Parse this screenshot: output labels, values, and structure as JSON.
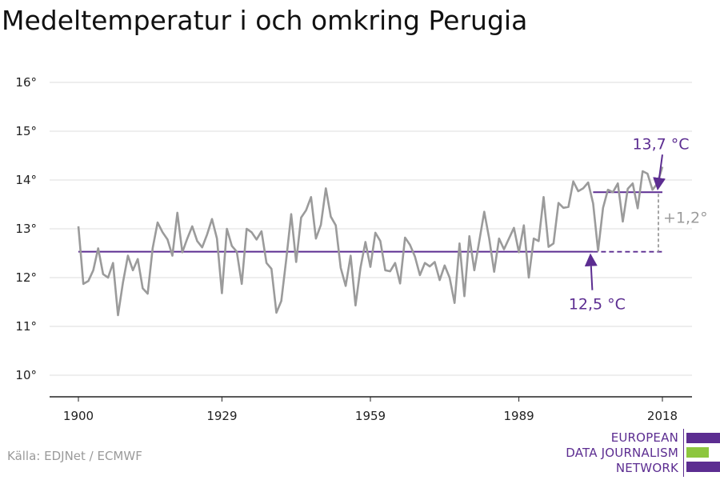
{
  "chart_data": {
    "type": "line",
    "title": "Medeltemperatur i och omkring Perugia",
    "xlim": [
      1900,
      2018
    ],
    "ylim": [
      10,
      16
    ],
    "x_ticks": [
      {
        "value": 1900,
        "label": "1900"
      },
      {
        "value": 1929,
        "label": "1929"
      },
      {
        "value": 1959,
        "label": "1959"
      },
      {
        "value": 1989,
        "label": "1989"
      },
      {
        "value": 2018,
        "label": "2018"
      }
    ],
    "y_ticks": [
      {
        "value": 10,
        "label": "10°"
      },
      {
        "value": 11,
        "label": "11°"
      },
      {
        "value": 12,
        "label": "12°"
      },
      {
        "value": 13,
        "label": "13°"
      },
      {
        "value": 14,
        "label": "14°"
      },
      {
        "value": 15,
        "label": "15°"
      },
      {
        "value": 16,
        "label": "16°"
      }
    ],
    "grid": true,
    "series": [
      {
        "color": "#9b9b9b",
        "x": [
          1900,
          1901,
          1902,
          1903,
          1904,
          1905,
          1906,
          1907,
          1908,
          1909,
          1910,
          1911,
          1912,
          1913,
          1914,
          1915,
          1916,
          1917,
          1918,
          1919,
          1920,
          1921,
          1922,
          1923,
          1924,
          1925,
          1926,
          1927,
          1928,
          1929,
          1930,
          1931,
          1932,
          1933,
          1934,
          1935,
          1936,
          1937,
          1938,
          1939,
          1940,
          1941,
          1942,
          1943,
          1944,
          1945,
          1946,
          1947,
          1948,
          1949,
          1950,
          1951,
          1952,
          1953,
          1954,
          1955,
          1956,
          1957,
          1958,
          1959,
          1960,
          1961,
          1962,
          1963,
          1964,
          1965,
          1966,
          1967,
          1968,
          1969,
          1970,
          1971,
          1972,
          1973,
          1974,
          1975,
          1976,
          1977,
          1978,
          1979,
          1980,
          1981,
          1982,
          1983,
          1984,
          1985,
          1986,
          1987,
          1988,
          1989,
          1990,
          1991,
          1992,
          1993,
          1994,
          1995,
          1996,
          1997,
          1998,
          1999,
          2000,
          2001,
          2002,
          2003,
          2004,
          2005,
          2006,
          2007,
          2008,
          2009,
          2010,
          2011,
          2012,
          2013,
          2014,
          2015,
          2016,
          2017,
          2018
        ],
        "values": [
          13.05,
          11.87,
          11.93,
          12.15,
          12.6,
          12.07,
          12.0,
          12.3,
          11.23,
          11.9,
          12.45,
          12.15,
          12.38,
          11.78,
          11.67,
          12.6,
          13.13,
          12.93,
          12.78,
          12.45,
          13.33,
          12.52,
          12.8,
          13.05,
          12.75,
          12.62,
          12.88,
          13.2,
          12.8,
          11.68,
          13.0,
          12.65,
          12.53,
          11.87,
          13.0,
          12.93,
          12.78,
          12.95,
          12.3,
          12.18,
          11.28,
          11.52,
          12.37,
          13.3,
          12.32,
          13.23,
          13.38,
          13.65,
          12.8,
          13.08,
          13.83,
          13.25,
          13.07,
          12.2,
          11.83,
          12.45,
          11.43,
          12.2,
          12.73,
          12.22,
          12.92,
          12.75,
          12.15,
          12.13,
          12.3,
          11.88,
          12.82,
          12.67,
          12.43,
          12.05,
          12.3,
          12.23,
          12.32,
          11.95,
          12.25,
          12.0,
          11.48,
          12.7,
          11.62,
          12.85,
          12.15,
          12.75,
          13.35,
          12.8,
          12.12,
          12.8,
          12.58,
          12.8,
          13.02,
          12.52,
          13.07,
          12.0,
          12.8,
          12.75,
          13.65,
          12.63,
          12.7,
          13.53,
          13.43,
          13.45,
          13.97,
          13.77,
          13.83,
          13.95,
          13.52,
          12.55,
          13.43,
          13.8,
          13.75,
          13.93,
          13.15,
          13.82,
          13.93,
          13.42,
          14.18,
          14.13,
          13.8,
          13.93,
          14.27
        ]
      }
    ],
    "reference_lines": [
      {
        "label": "12,5 °C",
        "value": 12.53,
        "x_start": 1900,
        "x_end": 2004,
        "dashed_to": 2018,
        "color": "#5c2d91"
      },
      {
        "label": "13,7 °C",
        "value": 13.75,
        "x_start": 2004,
        "x_end": 2018,
        "color": "#5c2d91"
      }
    ],
    "difference": {
      "label": "+1,2°",
      "x": 2018,
      "from": 12.53,
      "to": 13.75,
      "color": "#9b9b9b"
    }
  },
  "source_text": "Källa: EDJNet / ECMWF",
  "logo": {
    "lines": [
      "EUROPEAN",
      "DATA JOURNALISM",
      "NETWORK"
    ],
    "colors": {
      "purple": "#5c2d91",
      "green": "#8dc63f"
    }
  }
}
